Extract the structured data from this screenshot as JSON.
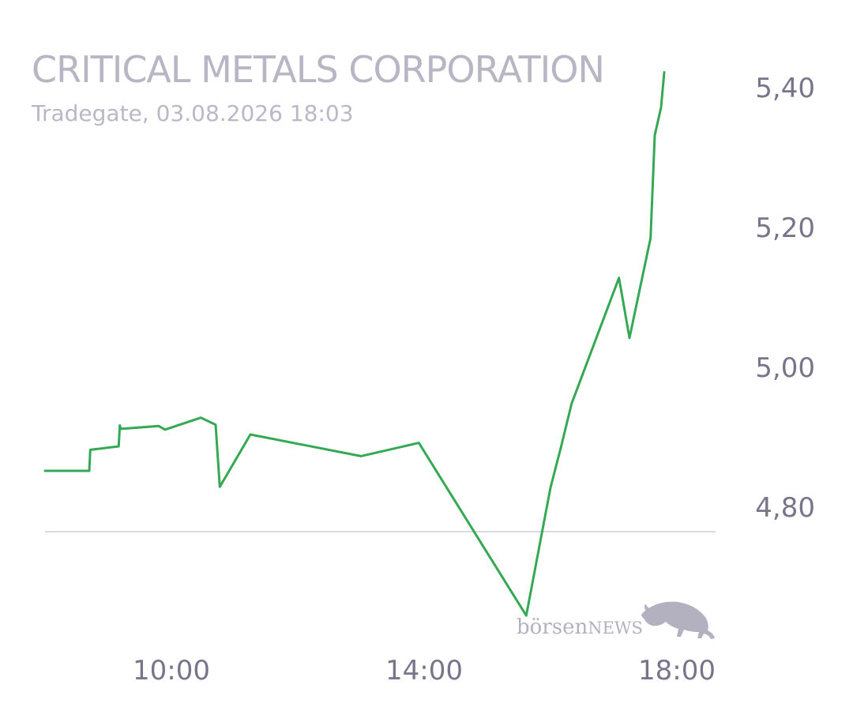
{
  "chart_data": {
    "type": "line",
    "title": "CRITICAL METALS CORPORATION",
    "subtitle": "Tradegate, 03.08.2026 18:03",
    "xlabel": "",
    "ylabel": "",
    "x_ticks": [
      "10:00",
      "14:00",
      "18:00"
    ],
    "y_ticks": [
      "4,80",
      "5,00",
      "5,20",
      "5,40"
    ],
    "x_range": [
      "08:00",
      "18:15"
    ],
    "ylim": [
      4.62,
      5.44
    ],
    "reference_value": 4.765,
    "line_color": "#34a853",
    "grid": false,
    "series": [
      {
        "x": [
          "08:00",
          "08:42",
          "08:43",
          "09:10",
          "09:11",
          "09:12",
          "09:48",
          "09:54",
          "10:28",
          "10:42",
          "10:46",
          "11:15",
          "13:00",
          "13:55",
          "15:37",
          "16:00",
          "16:10",
          "16:20",
          "17:05",
          "17:15",
          "17:35",
          "17:39",
          "17:45",
          "17:48"
        ],
        "values": [
          4.852,
          4.852,
          4.882,
          4.887,
          4.917,
          4.912,
          4.916,
          4.911,
          4.928,
          4.918,
          4.829,
          4.904,
          4.873,
          4.892,
          4.645,
          4.828,
          4.886,
          4.948,
          5.128,
          5.042,
          5.185,
          5.332,
          5.372,
          5.422
        ]
      }
    ]
  },
  "watermark": {
    "brand_lower": "börsen",
    "brand_caps": "NEWS",
    "icon": "bull-icon"
  }
}
